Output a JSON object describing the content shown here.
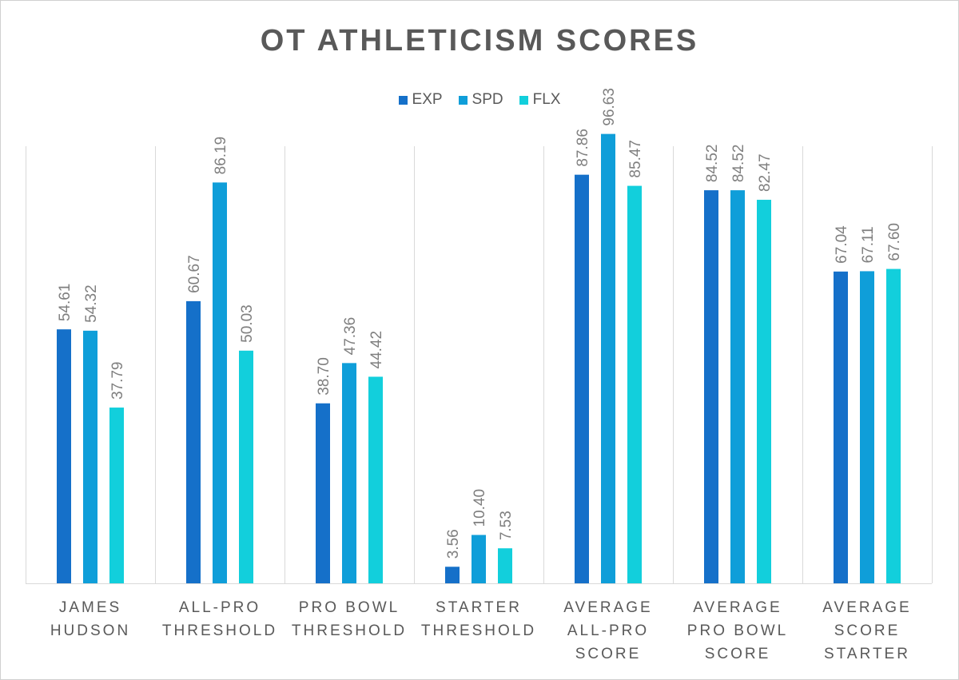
{
  "chart_data": {
    "type": "bar",
    "title": "OT ATHLETICISM SCORES",
    "xlabel": "",
    "ylabel": "",
    "ylim": [
      0,
      100
    ],
    "grid": false,
    "legend_position": "top",
    "categories": [
      "JAMES HUDSON",
      "ALL-PRO THRESHOLD",
      "PRO BOWL THRESHOLD",
      "STARTER THRESHOLD",
      "AVERAGE ALL-PRO SCORE",
      "AVERAGE PRO BOWL SCORE",
      "AVERAGE SCORE STARTER"
    ],
    "category_lines": [
      [
        "JAMES",
        "HUDSON"
      ],
      [
        "ALL-PRO",
        "THRESHOLD"
      ],
      [
        "PRO BOWL",
        "THRESHOLD"
      ],
      [
        "STARTER",
        "THRESHOLD"
      ],
      [
        "AVERAGE",
        "ALL-PRO",
        "SCORE"
      ],
      [
        "AVERAGE",
        "PRO BOWL",
        "SCORE"
      ],
      [
        "AVERAGE",
        "SCORE",
        "STARTER"
      ]
    ],
    "series": [
      {
        "name": "EXP",
        "color": "#1570c9",
        "values": [
          54.61,
          60.67,
          38.7,
          3.56,
          87.86,
          84.52,
          67.04
        ]
      },
      {
        "name": "SPD",
        "color": "#0f9ed9",
        "values": [
          54.32,
          86.19,
          47.36,
          10.4,
          96.63,
          84.52,
          67.11
        ]
      },
      {
        "name": "FLX",
        "color": "#12cfdc",
        "values": [
          37.79,
          50.03,
          44.42,
          7.53,
          85.47,
          82.47,
          67.6
        ]
      }
    ],
    "data_labels": [
      [
        "54.61",
        "60.67",
        "38.70",
        "3.56",
        "87.86",
        "84.52",
        "67.04"
      ],
      [
        "54.32",
        "86.19",
        "47.36",
        "10.40",
        "96.63",
        "84.52",
        "67.11"
      ],
      [
        "37.79",
        "50.03",
        "44.42",
        "7.53",
        "85.47",
        "82.47",
        "67.60"
      ]
    ]
  }
}
